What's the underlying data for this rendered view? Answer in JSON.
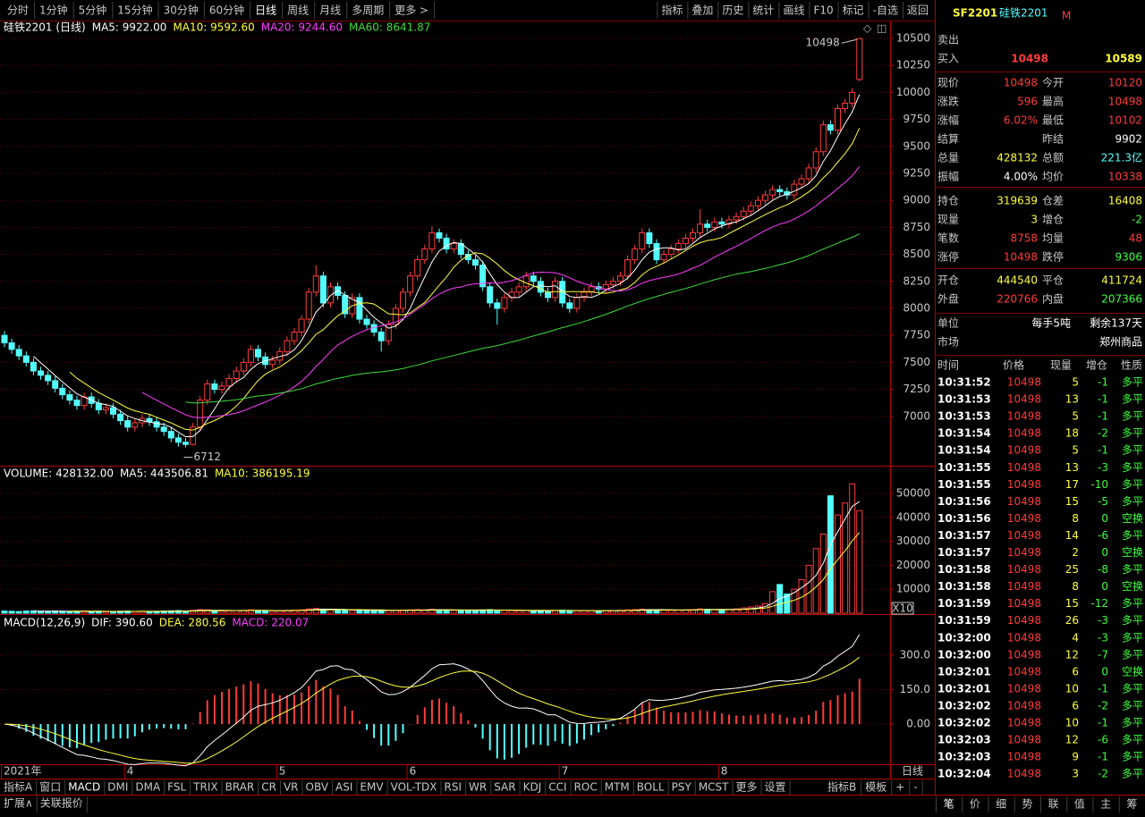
{
  "toolbar": {
    "left": [
      "分时",
      "1分钟",
      "5分钟",
      "15分钟",
      "30分钟",
      "60分钟",
      "日线",
      "周线",
      "月线",
      "多周期",
      "更多 >"
    ],
    "selected": 6,
    "right": [
      "指标",
      "叠加",
      "历史",
      "统计",
      "画线",
      "F10",
      "标记",
      "-自选",
      "返回"
    ]
  },
  "price_chart": {
    "type": "candlestick",
    "grid": true,
    "up_color": "#ff3c3c",
    "down_color": "#54ffff",
    "legend": [
      {
        "text": "硅铁2201 (日线)",
        "color": "#ffffff"
      },
      {
        "text": "MA5: 9922.00",
        "color": "#ffffff",
        "period": 5
      },
      {
        "text": "MA10: 9592.60",
        "color": "#ffff3c",
        "period": 10
      },
      {
        "text": "MA20: 9244.60",
        "color": "#ff3cff",
        "period": 20
      },
      {
        "text": "MA60: 8641.87",
        "color": "#3cdc3c",
        "period": 60
      }
    ],
    "ylim": [
      6551,
      10657
    ],
    "yticks": [
      7000,
      7250,
      7500,
      7750,
      8000,
      8250,
      8500,
      8750,
      9000,
      9250,
      9500,
      9750,
      10000,
      10250,
      10500
    ],
    "high_label": 10498,
    "low_label": 6712,
    "candles": [
      [
        7750,
        7790,
        7640,
        7680
      ],
      [
        7680,
        7720,
        7580,
        7620
      ],
      [
        7620,
        7660,
        7520,
        7560
      ],
      [
        7560,
        7600,
        7460,
        7500
      ],
      [
        7500,
        7540,
        7380,
        7420
      ],
      [
        7420,
        7460,
        7340,
        7380
      ],
      [
        7380,
        7420,
        7290,
        7330
      ],
      [
        7330,
        7370,
        7220,
        7260
      ],
      [
        7260,
        7300,
        7160,
        7200
      ],
      [
        7200,
        7240,
        7110,
        7150
      ],
      [
        7150,
        7190,
        7060,
        7100
      ],
      [
        7100,
        7220,
        7060,
        7180
      ],
      [
        7180,
        7220,
        7080,
        7120
      ],
      [
        7120,
        7160,
        7020,
        7060
      ],
      [
        7060,
        7120,
        7020,
        7080
      ],
      [
        7080,
        7120,
        6980,
        7020
      ],
      [
        7020,
        7060,
        6920,
        6960
      ],
      [
        6960,
        7000,
        6860,
        6900
      ],
      [
        6900,
        6980,
        6860,
        6940
      ],
      [
        6940,
        7020,
        6900,
        6980
      ],
      [
        6980,
        7020,
        6910,
        6950
      ],
      [
        6950,
        6990,
        6860,
        6900
      ],
      [
        6900,
        6940,
        6820,
        6860
      ],
      [
        6860,
        6900,
        6760,
        6800
      ],
      [
        6800,
        6840,
        6720,
        6760
      ],
      [
        6760,
        6800,
        6712,
        6740
      ],
      [
        6740,
        6940,
        6730,
        6900
      ],
      [
        6900,
        7190,
        6860,
        7150
      ],
      [
        7150,
        7340,
        7110,
        7300
      ],
      [
        7300,
        7340,
        7210,
        7250
      ],
      [
        7250,
        7320,
        7210,
        7280
      ],
      [
        7280,
        7390,
        7240,
        7350
      ],
      [
        7350,
        7460,
        7310,
        7420
      ],
      [
        7420,
        7540,
        7380,
        7500
      ],
      [
        7500,
        7660,
        7460,
        7620
      ],
      [
        7620,
        7660,
        7510,
        7550
      ],
      [
        7550,
        7590,
        7440,
        7480
      ],
      [
        7480,
        7560,
        7440,
        7520
      ],
      [
        7520,
        7640,
        7480,
        7600
      ],
      [
        7600,
        7740,
        7560,
        7700
      ],
      [
        7700,
        7820,
        7660,
        7780
      ],
      [
        7780,
        7940,
        7740,
        7900
      ],
      [
        7900,
        8190,
        7860,
        8150
      ],
      [
        8150,
        8400,
        8110,
        8300
      ],
      [
        8300,
        8340,
        8010,
        8050
      ],
      [
        8050,
        8240,
        8010,
        8200
      ],
      [
        8200,
        8240,
        8080,
        8120
      ],
      [
        8120,
        8160,
        7910,
        7950
      ],
      [
        7950,
        8140,
        7910,
        8100
      ],
      [
        8100,
        8140,
        7860,
        7900
      ],
      [
        7900,
        7940,
        7810,
        7850
      ],
      [
        7850,
        7890,
        7740,
        7780
      ],
      [
        7780,
        7820,
        7600,
        7700
      ],
      [
        7700,
        7890,
        7660,
        7850
      ],
      [
        7850,
        8040,
        7810,
        8000
      ],
      [
        8000,
        8190,
        7960,
        8150
      ],
      [
        8150,
        8340,
        8110,
        8300
      ],
      [
        8300,
        8490,
        8260,
        8450
      ],
      [
        8450,
        8590,
        8410,
        8550
      ],
      [
        8550,
        8760,
        8510,
        8700
      ],
      [
        8700,
        8740,
        8610,
        8650
      ],
      [
        8650,
        8690,
        8510,
        8550
      ],
      [
        8550,
        8640,
        8510,
        8600
      ],
      [
        8600,
        8640,
        8460,
        8500
      ],
      [
        8500,
        8540,
        8410,
        8450
      ],
      [
        8450,
        8490,
        8360,
        8400
      ],
      [
        8400,
        8440,
        8160,
        8200
      ],
      [
        8200,
        8240,
        8010,
        8050
      ],
      [
        8050,
        8090,
        7850,
        8000
      ],
      [
        8000,
        8140,
        7960,
        8100
      ],
      [
        8100,
        8190,
        8060,
        8150
      ],
      [
        8150,
        8240,
        8110,
        8200
      ],
      [
        8200,
        8340,
        8160,
        8300
      ],
      [
        8300,
        8340,
        8210,
        8250
      ],
      [
        8250,
        8290,
        8110,
        8150
      ],
      [
        8150,
        8190,
        8060,
        8100
      ],
      [
        8100,
        8290,
        8060,
        8250
      ],
      [
        8250,
        8290,
        8010,
        8050
      ],
      [
        8050,
        8090,
        7960,
        8000
      ],
      [
        8000,
        8140,
        7960,
        8100
      ],
      [
        8100,
        8190,
        8060,
        8150
      ],
      [
        8150,
        8240,
        8110,
        8200
      ],
      [
        8200,
        8240,
        8140,
        8180
      ],
      [
        8180,
        8260,
        8140,
        8220
      ],
      [
        8220,
        8290,
        8180,
        8250
      ],
      [
        8250,
        8340,
        8210,
        8300
      ],
      [
        8300,
        8490,
        8260,
        8450
      ],
      [
        8450,
        8590,
        8410,
        8550
      ],
      [
        8550,
        8740,
        8510,
        8700
      ],
      [
        8700,
        8740,
        8560,
        8600
      ],
      [
        8600,
        8640,
        8410,
        8450
      ],
      [
        8450,
        8540,
        8410,
        8500
      ],
      [
        8500,
        8590,
        8460,
        8550
      ],
      [
        8550,
        8640,
        8510,
        8600
      ],
      [
        8600,
        8690,
        8560,
        8650
      ],
      [
        8650,
        8740,
        8610,
        8700
      ],
      [
        8700,
        8920,
        8660,
        8780
      ],
      [
        8780,
        8820,
        8710,
        8750
      ],
      [
        8750,
        8840,
        8710,
        8800
      ],
      [
        8800,
        8840,
        8740,
        8780
      ],
      [
        8780,
        8860,
        8740,
        8820
      ],
      [
        8820,
        8890,
        8780,
        8850
      ],
      [
        8850,
        8940,
        8810,
        8900
      ],
      [
        8900,
        8990,
        8860,
        8950
      ],
      [
        8950,
        9040,
        8910,
        9000
      ],
      [
        9000,
        9090,
        8960,
        9050
      ],
      [
        9050,
        9140,
        9010,
        9100
      ],
      [
        9100,
        9140,
        9040,
        9080
      ],
      [
        9080,
        9120,
        9010,
        9050
      ],
      [
        9050,
        9190,
        9010,
        9150
      ],
      [
        9150,
        9240,
        9110,
        9200
      ],
      [
        9200,
        9340,
        9160,
        9300
      ],
      [
        9300,
        9490,
        9260,
        9450
      ],
      [
        9450,
        9740,
        9410,
        9700
      ],
      [
        9700,
        9740,
        9610,
        9650
      ],
      [
        9650,
        9890,
        9610,
        9850
      ],
      [
        9850,
        9940,
        9810,
        9900
      ],
      [
        9900,
        10040,
        9860,
        10000
      ],
      [
        10120,
        10498,
        10102,
        10498
      ]
    ]
  },
  "volume_chart": {
    "type": "bar",
    "legend": [
      {
        "text": "VOLUME: 428132.00",
        "color": "#ffffff"
      },
      {
        "text": "MA5: 443506.81",
        "color": "#ffffff",
        "period": 5
      },
      {
        "text": "MA10: 386195.19",
        "color": "#ffff3c",
        "period": 10
      }
    ],
    "ylim": [
      0,
      60450
    ],
    "yticks": [
      10000,
      20000,
      30000,
      40000,
      50000
    ],
    "multiplier": "X10",
    "values": [
      900,
      800,
      700,
      900,
      1000,
      800,
      700,
      900,
      800,
      700,
      800,
      900,
      700,
      800,
      600,
      700,
      800,
      900,
      700,
      800,
      700,
      800,
      900,
      1000,
      1100,
      900,
      1200,
      1500,
      1400,
      1000,
      900,
      1000,
      1100,
      1200,
      1400,
      1100,
      1000,
      900,
      1000,
      1200,
      1300,
      1400,
      1800,
      2000,
      1700,
      1500,
      1300,
      1400,
      1200,
      1300,
      1100,
      1000,
      1200,
      1100,
      1200,
      1300,
      1400,
      1500,
      1400,
      1600,
      1400,
      1300,
      1200,
      1300,
      1200,
      1100,
      1400,
      1500,
      1300,
      1200,
      1100,
      1000,
      1100,
      1000,
      1100,
      1000,
      1200,
      1300,
      1100,
      1000,
      1000,
      1100,
      900,
      1000,
      1100,
      1200,
      1400,
      1500,
      1700,
      1500,
      1400,
      1300,
      1200,
      1300,
      1400,
      1500,
      1800,
      1600,
      1500,
      1400,
      1500,
      1800,
      2200,
      2600,
      3000,
      4000,
      9000,
      12000,
      8000,
      10000,
      14000,
      20000,
      27000,
      33000,
      49000,
      41000,
      46000,
      54000,
      42813
    ]
  },
  "macd_chart": {
    "type": "macd",
    "params": [
      12,
      26,
      9
    ],
    "legend": [
      {
        "text": "MACD(12,26,9)",
        "color": "#ffffff"
      },
      {
        "text": "DIF: 390.60",
        "color": "#ffffff"
      },
      {
        "text": "DEA: 280.56",
        "color": "#ffff3c"
      },
      {
        "text": "MACD: 220.07",
        "color": "#ff3cff"
      }
    ],
    "ylim": [
      -175,
      467
    ],
    "yticks": [
      {
        "value": 0,
        "label": "0.00"
      },
      {
        "value": 150,
        "label": "150.0"
      },
      {
        "value": 300,
        "label": "300.0"
      }
    ]
  },
  "date_axis": {
    "labels": [
      "2021年",
      "4",
      "5",
      "6",
      "7",
      "8"
    ],
    "period": "日线"
  },
  "indicator_tabs": {
    "left": [
      "指标A",
      "窗口",
      "MACD",
      "DMI",
      "DMA",
      "FSL",
      "TRIX",
      "BRAR",
      "CR",
      "VR",
      "OBV",
      "ASI",
      "EMV",
      "VOL-TDX",
      "RSI",
      "WR",
      "SAR",
      "KDJ",
      "CCI",
      "ROC",
      "MTM",
      "BOLL",
      "PSY",
      "MCST",
      "更多",
      "设置"
    ],
    "right": [
      "指标B",
      "模板",
      "+",
      "-"
    ]
  },
  "bottom_bar": [
    "扩展∧",
    "关联报价"
  ],
  "quote": {
    "code": "SF2201",
    "name": "硅铁2201",
    "market_mark": "M",
    "sell_label": "卖出",
    "buy_label": "买入",
    "price_a": "10498",
    "price_b": "10589",
    "groups": [
      [
        {
          "label": "现价",
          "value": "10498",
          "color": "#ff3c3c",
          "label2": "今开",
          "value2": "10120",
          "color2": "#ff3c3c"
        },
        {
          "label": "涨跌",
          "value": "596",
          "color": "#ff3c3c",
          "label2": "最高",
          "value2": "10498",
          "color2": "#ff3c3c"
        },
        {
          "label": "涨幅",
          "value": "6.02%",
          "color": "#ff3c3c",
          "label2": "最低",
          "value2": "10102",
          "color2": "#ff3c3c"
        },
        {
          "label": "结算",
          "label2": "昨结",
          "value2": "9902",
          "color2": "#ffffff"
        },
        {
          "label": "总量",
          "value": "428132",
          "color": "#ffff3c",
          "label2": "总额",
          "value2": "221.3亿",
          "color2": "#54ffff"
        },
        {
          "label": "振幅",
          "value": "4.00%",
          "color": "#ffffff",
          "label2": "均价",
          "value2": "10338",
          "color2": "#ff3c3c"
        }
      ],
      [
        {
          "label": "持仓",
          "value": "319639",
          "color": "#ffff3c",
          "label2": "仓差",
          "value2": "16408",
          "color2": "#ffff3c"
        },
        {
          "label": "现量",
          "value": "3",
          "color": "#ffff3c",
          "label2": "增仓",
          "value2": "-2",
          "color2": "#3cff3c"
        },
        {
          "label": "笔数",
          "value": "8758",
          "color": "#ff3c3c",
          "label2": "均量",
          "value2": "48",
          "color2": "#ff3c3c"
        },
        {
          "label": "涨停",
          "value": "10498",
          "color": "#ff3c3c",
          "label2": "跌停",
          "value2": "9306",
          "color2": "#3cff3c"
        }
      ],
      [
        {
          "label": "开仓",
          "value": "444540",
          "color": "#ffff3c",
          "label2": "平仓",
          "value2": "411724",
          "color2": "#ffff3c"
        },
        {
          "label": "外盘",
          "value": "220766",
          "color": "#ff3c3c",
          "label2": "内盘",
          "value2": "207366",
          "color2": "#3cff3c"
        }
      ],
      [
        {
          "label": "单位",
          "value": "每手5吨",
          "color": "#ffffff",
          "value2": "剩余137天",
          "color2": "#ffffff"
        },
        {
          "label": "市场",
          "value2": "郑州商品",
          "color2": "#ffffff"
        }
      ]
    ]
  },
  "ticks": {
    "header": [
      "时间",
      "价格",
      "现量",
      "增仓",
      "性质"
    ],
    "rows": [
      [
        "10:31:52",
        10498,
        5,
        -1,
        "多平"
      ],
      [
        "10:31:53",
        10498,
        13,
        -1,
        "多平"
      ],
      [
        "10:31:53",
        10498,
        5,
        -1,
        "多平"
      ],
      [
        "10:31:54",
        10498,
        18,
        -2,
        "多平"
      ],
      [
        "10:31:54",
        10498,
        5,
        -1,
        "多平"
      ],
      [
        "10:31:55",
        10498,
        13,
        -3,
        "多平"
      ],
      [
        "10:31:55",
        10498,
        17,
        -10,
        "多平"
      ],
      [
        "10:31:56",
        10498,
        15,
        -5,
        "多平"
      ],
      [
        "10:31:56",
        10498,
        8,
        0,
        "空换"
      ],
      [
        "10:31:57",
        10498,
        14,
        -6,
        "多平"
      ],
      [
        "10:31:57",
        10498,
        2,
        0,
        "空换"
      ],
      [
        "10:31:58",
        10498,
        25,
        -8,
        "多平"
      ],
      [
        "10:31:58",
        10498,
        8,
        0,
        "空换"
      ],
      [
        "10:31:59",
        10498,
        15,
        -12,
        "多平"
      ],
      [
        "10:31:59",
        10498,
        26,
        -3,
        "多平"
      ],
      [
        "10:32:00",
        10498,
        4,
        -3,
        "多平"
      ],
      [
        "10:32:00",
        10498,
        12,
        -7,
        "多平"
      ],
      [
        "10:32:01",
        10498,
        6,
        0,
        "空换"
      ],
      [
        "10:32:01",
        10498,
        10,
        -1,
        "多平"
      ],
      [
        "10:32:02",
        10498,
        6,
        -2,
        "多平"
      ],
      [
        "10:32:02",
        10498,
        10,
        -1,
        "多平"
      ],
      [
        "10:32:03",
        10498,
        12,
        -6,
        "多平"
      ],
      [
        "10:32:03",
        10498,
        9,
        -1,
        "多平"
      ],
      [
        "10:32:04",
        10498,
        3,
        -2,
        "多平"
      ]
    ]
  },
  "tabs": [
    "笔",
    "价",
    "细",
    "势",
    "联",
    "值",
    "主",
    "筹"
  ]
}
